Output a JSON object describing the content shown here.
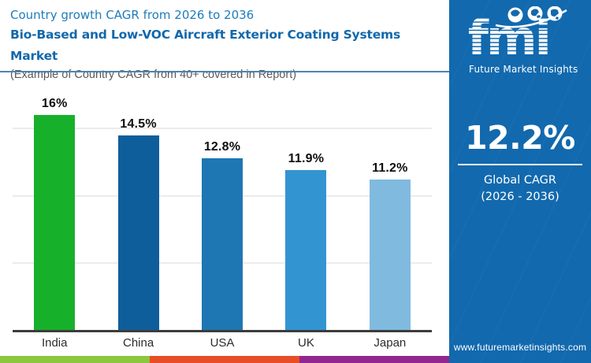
{
  "header": {
    "subtitle": "Country growth CAGR from 2026 to 2036",
    "title": "Bio-Based and Low-VOC Aircraft Exterior Coating Systems Market",
    "note": "(Example of Country CAGR from 40+ covered in Report)"
  },
  "chart_data": {
    "type": "bar",
    "title": "Country growth CAGR from 2026 to 2036",
    "categories": [
      "India",
      "China",
      "USA",
      "UK",
      "Japan"
    ],
    "values": [
      16,
      14.5,
      12.8,
      11.9,
      11.2
    ],
    "value_labels": [
      "16%",
      "14.5%",
      "12.8%",
      "11.9%",
      "11.2%"
    ],
    "bar_colors": [
      "#17b02b",
      "#0f5e9c",
      "#1e77b2",
      "#3394d2",
      "#80badf"
    ],
    "xlabel": "",
    "ylabel": "",
    "ylim": [
      0,
      19.25
    ],
    "gridline_values": [
      5,
      10,
      15
    ],
    "grid": "horizontal-light",
    "legend": "none"
  },
  "sidebar": {
    "logo_text": "fmi",
    "logo_tagline": "Future Market Insights",
    "highlight_value": "12.2%",
    "caption_line1": "Global CAGR",
    "caption_line2": "(2026 - 2036)",
    "website": "www.futuremarketinsights.com",
    "bg_color": "#1269ae"
  },
  "footer_stripe_colors": [
    "#8dc63f",
    "#e84e25",
    "#92278f"
  ],
  "accent_colors": {
    "header_subtitle_blue": "#1d7cbd",
    "header_title_blue": "#1268ab",
    "header_note_gray": "#58595b",
    "divider_blue": "#4e84ad",
    "axis_dark": "#3c3c3c",
    "gridline_gray": "#ececec"
  }
}
